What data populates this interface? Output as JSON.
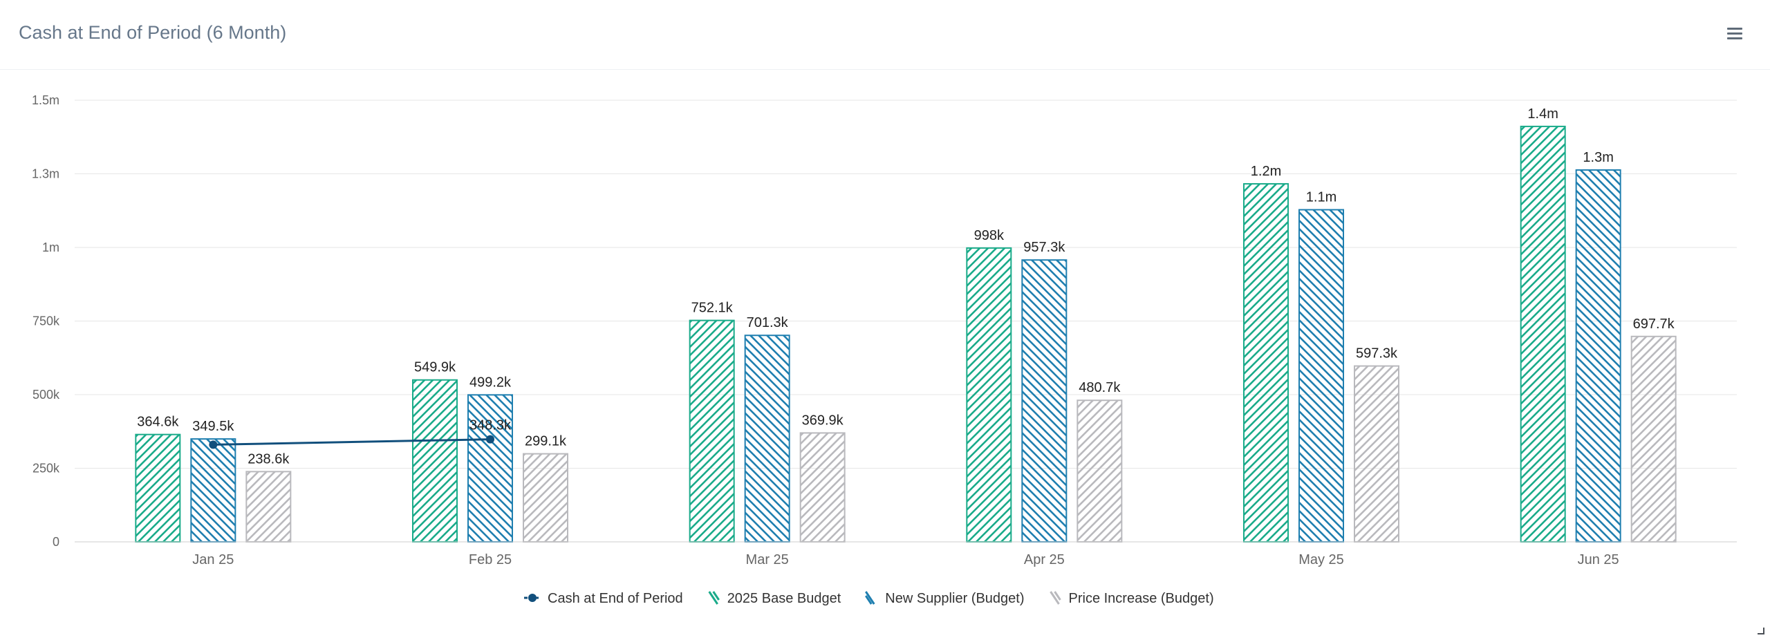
{
  "title": "Cash at End of Period (6 Month)",
  "icons": {
    "menu": "hamburger-menu-icon",
    "resize": "resize-handle-icon"
  },
  "colors": {
    "base": "#1aab8a",
    "supplier": "#1f7fb0",
    "price": "#b9b9bd",
    "line": "#114f7c",
    "grid": "#e6e6e6",
    "axis_text": "#666666",
    "label_text": "#222222"
  },
  "chart_data": {
    "type": "bar",
    "categories": [
      "Jan 25",
      "Feb 25",
      "Mar 25",
      "Apr 25",
      "May 25",
      "Jun 25"
    ],
    "ylim": [
      0,
      1500000
    ],
    "yticks": [
      {
        "value": 0,
        "label": "0"
      },
      {
        "value": 250000,
        "label": "250k"
      },
      {
        "value": 500000,
        "label": "500k"
      },
      {
        "value": 750000,
        "label": "750k"
      },
      {
        "value": 1000000,
        "label": "1m"
      },
      {
        "value": 1250000,
        "label": "1.3m"
      },
      {
        "value": 1500000,
        "label": "1.5m"
      }
    ],
    "grid": true,
    "legend_position": "bottom-center",
    "series": [
      {
        "name": "2025 Base Budget",
        "type": "bar",
        "values": [
          364600,
          549900,
          752100,
          998000,
          1216000,
          1411000
        ],
        "labels": [
          "364.6k",
          "549.9k",
          "752.1k",
          "998k",
          "1.2m",
          "1.4m"
        ]
      },
      {
        "name": "New Supplier (Budget)",
        "type": "bar",
        "values": [
          349500,
          499200,
          701300,
          957300,
          1128000,
          1263000
        ],
        "labels": [
          "349.5k",
          "499.2k",
          "701.3k",
          "957.3k",
          "1.1m",
          "1.3m"
        ]
      },
      {
        "name": "Price Increase (Budget)",
        "type": "bar",
        "values": [
          238600,
          299100,
          369900,
          480700,
          597300,
          697700
        ],
        "labels": [
          "238.6k",
          "299.1k",
          "369.9k",
          "480.7k",
          "597.3k",
          "697.7k"
        ]
      },
      {
        "name": "Cash at End of Period",
        "type": "line",
        "values": [
          330000,
          348300,
          null,
          null,
          null,
          null
        ],
        "labels": [
          "",
          "348.3k",
          "",
          "",
          "",
          ""
        ]
      }
    ],
    "legend": [
      {
        "name": "Cash at End of Period",
        "symbol": "line-marker"
      },
      {
        "name": "2025 Base Budget",
        "symbol": "hatch"
      },
      {
        "name": "New Supplier (Budget)",
        "symbol": "hatch"
      },
      {
        "name": "Price Increase (Budget)",
        "symbol": "hatch"
      }
    ]
  }
}
